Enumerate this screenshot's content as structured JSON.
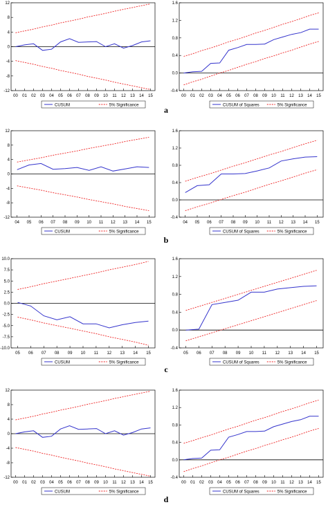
{
  "colors": {
    "series": "#3333cc",
    "bounds": "#ee2222",
    "frame": "#000000",
    "zero": "#000000"
  },
  "panel_labels": [
    "a",
    "b",
    "c",
    "d"
  ],
  "chart_data": [
    {
      "type": "line",
      "panel": "a",
      "categories": [
        "00",
        "01",
        "02",
        "03",
        "04",
        "05",
        "06",
        "07",
        "08",
        "09",
        "10",
        "11",
        "12",
        "13",
        "14",
        "15"
      ],
      "y_ticks": [
        "12",
        "8",
        "4",
        "0",
        "-4",
        "-8",
        "-12"
      ],
      "ylim": [
        -12,
        12
      ],
      "series": [
        {
          "name": "CUSUM",
          "values": [
            0,
            0.5,
            0.8,
            -1,
            -0.7,
            1.3,
            2.2,
            1.2,
            1.3,
            1.4,
            0,
            0.8,
            -0.4,
            0.3,
            1.3,
            1.6
          ]
        },
        {
          "name": "5% Significance",
          "values": [
            3.8,
            4.3,
            4.8,
            5.4,
            5.9,
            6.5,
            7,
            7.5,
            8.1,
            8.6,
            9.1,
            9.7,
            10.2,
            10.7,
            11.2,
            11.7
          ]
        },
        {
          "name": "",
          "values": [
            -3.8,
            -4.3,
            -4.8,
            -5.4,
            -5.9,
            -6.5,
            -7,
            -7.5,
            -8.1,
            -8.6,
            -9.1,
            -9.7,
            -10.2,
            -10.7,
            -11.2,
            -11.7
          ]
        }
      ]
    },
    {
      "type": "line",
      "panel": "a",
      "categories": [
        "00",
        "01",
        "02",
        "03",
        "04",
        "05",
        "06",
        "07",
        "08",
        "09",
        "10",
        "11",
        "12",
        "13",
        "14",
        "15"
      ],
      "y_ticks": [
        "1.6",
        "1.2",
        "0.8",
        "0.4",
        "0.0",
        "-0.4"
      ],
      "ylim": [
        -0.4,
        1.6
      ],
      "series": [
        {
          "name": "CUSUM of Squares",
          "values": [
            0,
            0.03,
            0.04,
            0.22,
            0.23,
            0.52,
            0.58,
            0.65,
            0.65,
            0.66,
            0.76,
            0.82,
            0.88,
            0.92,
            1,
            1
          ]
        },
        {
          "name": "5% Significance",
          "values": [
            0.38,
            0.44,
            0.51,
            0.57,
            0.64,
            0.71,
            0.77,
            0.84,
            0.91,
            0.97,
            1.04,
            1.11,
            1.17,
            1.24,
            1.31,
            1.37
          ]
        },
        {
          "name": "",
          "values": [
            -0.27,
            -0.2,
            -0.14,
            -0.07,
            0,
            0.06,
            0.13,
            0.2,
            0.26,
            0.33,
            0.39,
            0.46,
            0.52,
            0.59,
            0.66,
            0.72
          ]
        }
      ]
    },
    {
      "type": "line",
      "panel": "b",
      "categories": [
        "04",
        "05",
        "06",
        "07",
        "08",
        "09",
        "10",
        "11",
        "12",
        "13",
        "14",
        "15"
      ],
      "y_ticks": [
        "12",
        "8",
        "4",
        "0",
        "-4",
        "-8",
        "-12"
      ],
      "ylim": [
        -12,
        12
      ],
      "series": [
        {
          "name": "CUSUM",
          "values": [
            1.2,
            2.5,
            2.9,
            1.3,
            1.5,
            1.8,
            1,
            2,
            0.8,
            1.4,
            2,
            1.8
          ]
        },
        {
          "name": "5% Significance",
          "values": [
            3.3,
            3.9,
            4.5,
            5.2,
            5.8,
            6.4,
            7.1,
            7.7,
            8.3,
            9,
            9.6,
            10.2
          ]
        },
        {
          "name": "",
          "values": [
            -3.3,
            -3.9,
            -4.5,
            -5.2,
            -5.8,
            -6.4,
            -7.1,
            -7.7,
            -8.3,
            -9,
            -9.6,
            -10.2
          ]
        }
      ]
    },
    {
      "type": "line",
      "panel": "b",
      "categories": [
        "04",
        "05",
        "06",
        "07",
        "08",
        "09",
        "10",
        "11",
        "12",
        "13",
        "14",
        "15"
      ],
      "y_ticks": [
        "1.6",
        "1.2",
        "0.8",
        "0.4",
        "0.0",
        "-0.4"
      ],
      "ylim": [
        -0.4,
        1.6
      ],
      "series": [
        {
          "name": "CUSUM of Squares",
          "values": [
            0.17,
            0.33,
            0.35,
            0.6,
            0.6,
            0.61,
            0.67,
            0.74,
            0.9,
            0.95,
            0.99,
            1
          ]
        },
        {
          "name": "5% Significance",
          "values": [
            0.43,
            0.52,
            0.6,
            0.69,
            0.78,
            0.86,
            0.95,
            1.04,
            1.12,
            1.21,
            1.3,
            1.38
          ]
        },
        {
          "name": "",
          "values": [
            -0.25,
            -0.16,
            -0.08,
            0.01,
            0.1,
            0.18,
            0.27,
            0.36,
            0.44,
            0.53,
            0.62,
            0.7
          ]
        }
      ]
    },
    {
      "type": "line",
      "panel": "c",
      "categories": [
        "05",
        "06",
        "07",
        "08",
        "09",
        "10",
        "11",
        "12",
        "13",
        "14",
        "15"
      ],
      "y_ticks": [
        "10.0",
        "7.5",
        "5.0",
        "2.5",
        "0.0",
        "-2.5",
        "-5.0",
        "-7.5",
        "-10.0"
      ],
      "ylim": [
        -10,
        10
      ],
      "series": [
        {
          "name": "CUSUM",
          "values": [
            0.2,
            -0.6,
            -2.8,
            -3.7,
            -3,
            -4.6,
            -4.6,
            -5.5,
            -4.8,
            -4.3,
            -4
          ]
        },
        {
          "name": "5% Significance",
          "values": [
            3.1,
            3.7,
            4.4,
            5,
            5.6,
            6.2,
            6.8,
            7.5,
            8.1,
            8.7,
            9.4
          ]
        },
        {
          "name": "",
          "values": [
            -3.1,
            -3.7,
            -4.4,
            -5,
            -5.6,
            -6.2,
            -6.8,
            -7.5,
            -8.1,
            -8.7,
            -9.4
          ]
        }
      ]
    },
    {
      "type": "line",
      "panel": "c",
      "categories": [
        "05",
        "06",
        "07",
        "08",
        "09",
        "10",
        "11",
        "12",
        "13",
        "14",
        "15"
      ],
      "y_ticks": [
        "1.6",
        "1.2",
        "0.8",
        "0.4",
        "0.0",
        "-0.4"
      ],
      "ylim": [
        -0.4,
        1.6
      ],
      "series": [
        {
          "name": "CUSUM of Squares",
          "values": [
            0,
            0.02,
            0.57,
            0.62,
            0.67,
            0.85,
            0.85,
            0.92,
            0.95,
            0.98,
            0.99
          ]
        },
        {
          "name": "5% Significance",
          "values": [
            0.44,
            0.53,
            0.62,
            0.71,
            0.8,
            0.89,
            0.98,
            1.07,
            1.16,
            1.25,
            1.34
          ]
        },
        {
          "name": "",
          "values": [
            -0.24,
            -0.15,
            -0.06,
            0.03,
            0.12,
            0.21,
            0.3,
            0.39,
            0.48,
            0.57,
            0.66
          ]
        }
      ]
    },
    {
      "type": "line",
      "panel": "d",
      "categories": [
        "00",
        "01",
        "02",
        "03",
        "04",
        "05",
        "06",
        "07",
        "08",
        "09",
        "10",
        "11",
        "12",
        "13",
        "14",
        "15"
      ],
      "y_ticks": [
        "12",
        "8",
        "4",
        "0",
        "-4",
        "-8",
        "-12"
      ],
      "ylim": [
        -12,
        12
      ],
      "series": [
        {
          "name": "CUSUM",
          "values": [
            0,
            0.5,
            0.8,
            -1,
            -0.7,
            1.3,
            2.2,
            1.2,
            1.3,
            1.4,
            0,
            0.8,
            -0.4,
            0.3,
            1.3,
            1.6
          ]
        },
        {
          "name": "5% Significance",
          "values": [
            3.8,
            4.3,
            4.8,
            5.4,
            5.9,
            6.5,
            7,
            7.5,
            8.1,
            8.6,
            9.1,
            9.7,
            10.2,
            10.7,
            11.2,
            11.7
          ]
        },
        {
          "name": "",
          "values": [
            -3.8,
            -4.3,
            -4.8,
            -5.4,
            -5.9,
            -6.5,
            -7,
            -7.5,
            -8.1,
            -8.6,
            -9.1,
            -9.7,
            -10.2,
            -10.7,
            -11.2,
            -11.7
          ]
        }
      ]
    },
    {
      "type": "line",
      "panel": "d",
      "categories": [
        "00",
        "01",
        "02",
        "03",
        "04",
        "05",
        "06",
        "07",
        "08",
        "09",
        "10",
        "11",
        "12",
        "13",
        "14",
        "15"
      ],
      "y_ticks": [
        "1.6",
        "1.2",
        "0.8",
        "0.4",
        "0.0",
        "-0.4"
      ],
      "ylim": [
        -0.4,
        1.6
      ],
      "series": [
        {
          "name": "CUSUM of Squares",
          "values": [
            0,
            0.03,
            0.04,
            0.22,
            0.23,
            0.52,
            0.58,
            0.65,
            0.65,
            0.66,
            0.76,
            0.82,
            0.88,
            0.92,
            1,
            1
          ]
        },
        {
          "name": "5% Significance",
          "values": [
            0.38,
            0.44,
            0.51,
            0.57,
            0.64,
            0.71,
            0.77,
            0.84,
            0.91,
            0.97,
            1.04,
            1.11,
            1.17,
            1.24,
            1.31,
            1.37
          ]
        },
        {
          "name": "",
          "values": [
            -0.27,
            -0.2,
            -0.14,
            -0.07,
            0,
            0.06,
            0.13,
            0.2,
            0.26,
            0.33,
            0.39,
            0.46,
            0.52,
            0.59,
            0.66,
            0.72
          ]
        }
      ]
    }
  ]
}
